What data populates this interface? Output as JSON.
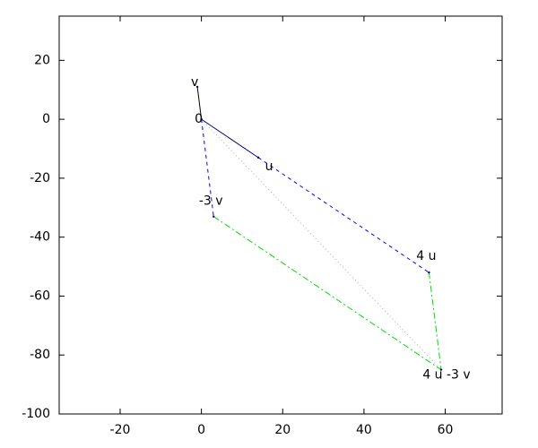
{
  "chart_data": {
    "type": "vector",
    "xlim": [
      -35,
      74
    ],
    "ylim": [
      -100,
      35
    ],
    "xticks": [
      -20,
      0,
      20,
      40,
      60
    ],
    "yticks": [
      -100,
      -80,
      -60,
      -40,
      -20,
      0,
      20
    ],
    "points": [
      {
        "label": "0",
        "x": 0,
        "y": 0
      },
      {
        "label": "v",
        "x": -1,
        "y": 11
      },
      {
        "label": "u",
        "x": 14,
        "y": -13
      },
      {
        "label": "4 u",
        "x": 56,
        "y": -52
      },
      {
        "label": "-3 v",
        "x": 3,
        "y": -33
      },
      {
        "label": "4 u -3 v",
        "x": 59,
        "y": -85
      }
    ],
    "series": [
      {
        "color": "#000000",
        "style": "solid",
        "x": [
          0,
          -1
        ],
        "y": [
          0,
          11
        ]
      },
      {
        "color": "#000080",
        "style": "solid",
        "x": [
          0,
          14
        ],
        "y": [
          0,
          -13
        ]
      },
      {
        "color": "#0000ff",
        "style": "dashed",
        "x": [
          14,
          56
        ],
        "y": [
          -13,
          -52
        ]
      },
      {
        "color": "#0000ff",
        "style": "dashed",
        "x": [
          0,
          3
        ],
        "y": [
          0,
          -33
        ]
      },
      {
        "color": "#00dd00",
        "style": "dashdot",
        "x": [
          3,
          59
        ],
        "y": [
          -33,
          -85
        ]
      },
      {
        "color": "#00dd00",
        "style": "dashdot",
        "x": [
          56,
          59
        ],
        "y": [
          -52,
          -85
        ]
      },
      {
        "color": "#aaaaaa",
        "style": "dotted",
        "x": [
          0,
          59
        ],
        "y": [
          0,
          -85
        ]
      }
    ]
  }
}
